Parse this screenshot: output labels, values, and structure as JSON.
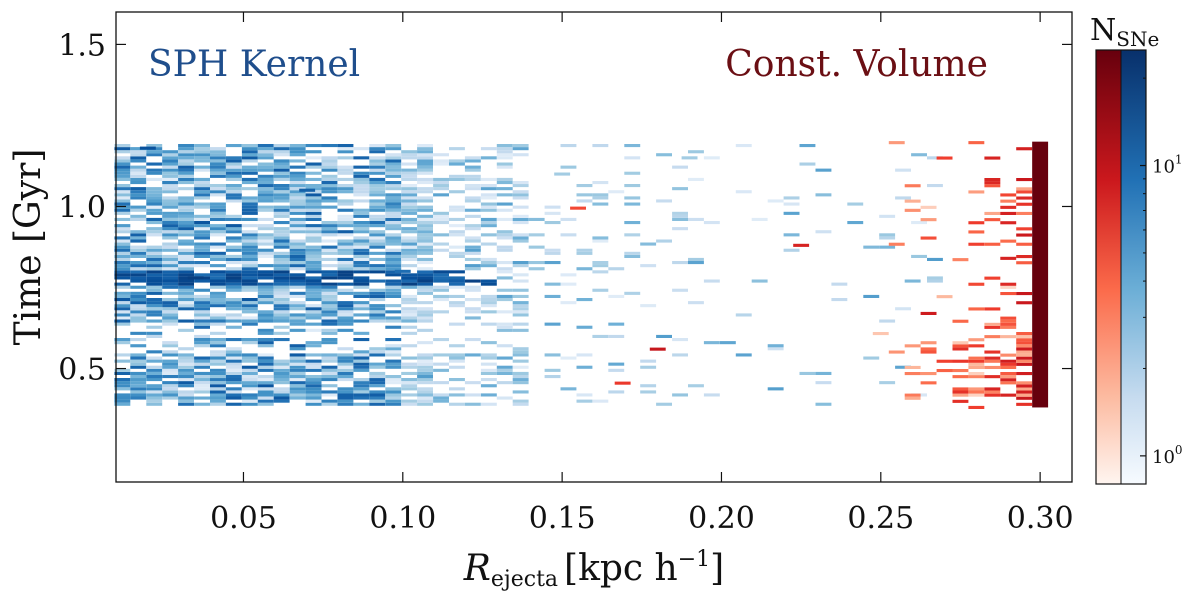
{
  "chart_data": {
    "type": "heatmap",
    "xlabel": {
      "main": "R",
      "sub": "ejecta",
      "unit_text": "[kpc h",
      "unit_sup": "−1",
      "unit_close": "]"
    },
    "ylabel": "Time [Gyr]",
    "xlim": [
      0.01,
      0.31
    ],
    "ylim": [
      0.15,
      1.6
    ],
    "xticks": [
      0.05,
      0.1,
      0.15,
      0.2,
      0.25,
      0.3
    ],
    "xtick_labels": [
      "0.05",
      "0.10",
      "0.15",
      "0.20",
      "0.25",
      "0.30"
    ],
    "yticks": [
      0.5,
      1.0,
      1.5
    ],
    "ytick_labels": [
      "0.5",
      "1.0",
      "1.5"
    ],
    "colorbar": {
      "label": "N",
      "label_sub": "SNe",
      "scale": "log",
      "range": [
        0.8,
        25
      ],
      "ticks": [
        {
          "value": 1,
          "base": "10",
          "exp": "0"
        },
        {
          "value": 10,
          "base": "10",
          "exp": "1"
        }
      ]
    },
    "annotations": [
      {
        "text": "SPH Kernel",
        "color": "#1f4e8c"
      },
      {
        "text": "Const. Volume",
        "color": "#6b0f14"
      }
    ],
    "series": [
      {
        "name": "SPH Kernel",
        "colormap": "Blues",
        "time_range": [
          0.39,
          1.19
        ],
        "radius_range": [
          0.012,
          0.27
        ],
        "bin_dx": 0.005,
        "bin_dt": 0.0095,
        "dense_band_time": [
          0.76,
          0.8
        ],
        "sample_cells": [
          {
            "r": 0.02,
            "t": 1.18,
            "n": 15
          },
          {
            "r": 0.035,
            "t": 0.78,
            "n": 20
          },
          {
            "r": 0.07,
            "t": 1.05,
            "n": 12
          },
          {
            "r": 0.1,
            "t": 0.8,
            "n": 10
          },
          {
            "r": 0.15,
            "t": 1.1,
            "n": 2
          },
          {
            "r": 0.19,
            "t": 1.15,
            "n": 2
          },
          {
            "r": 0.26,
            "t": 0.77,
            "n": 3
          }
        ]
      },
      {
        "name": "Const. Volume",
        "colormap": "Reds",
        "time_range": [
          0.38,
          1.2
        ],
        "radius_range": [
          0.13,
          0.303
        ],
        "bin_dx": 0.005,
        "bin_dt": 0.0095,
        "peak_column": {
          "r_min": 0.2975,
          "r_max": 0.3025,
          "t_min": 0.38,
          "t_max": 1.2,
          "n": 25
        },
        "sample_cells": [
          {
            "r": 0.155,
            "t": 0.995,
            "n": 5
          },
          {
            "r": 0.225,
            "t": 0.88,
            "n": 8
          },
          {
            "r": 0.265,
            "t": 0.67,
            "n": 9
          },
          {
            "r": 0.18,
            "t": 0.56,
            "n": 10
          },
          {
            "r": 0.169,
            "t": 0.455,
            "n": 6
          },
          {
            "r": 0.29,
            "t": 0.84,
            "n": 8
          }
        ]
      }
    ]
  }
}
